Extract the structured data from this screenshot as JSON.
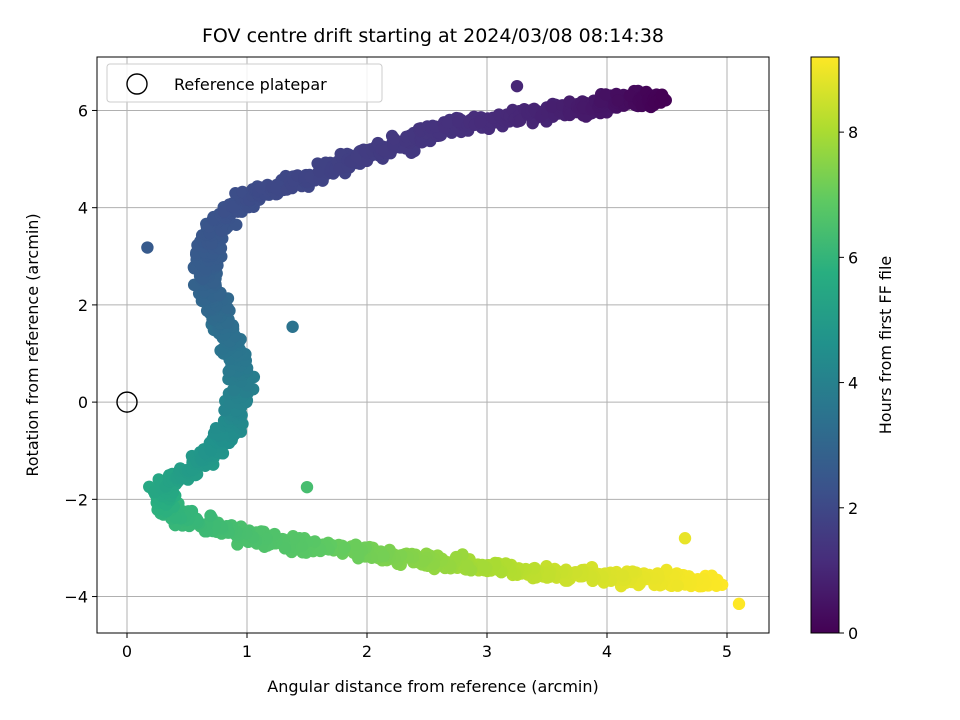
{
  "chart_data": {
    "type": "scatter",
    "title": "FOV centre drift starting at 2024/03/08 08:14:38",
    "xlabel": "Angular distance from reference (arcmin)",
    "ylabel": "Rotation from reference (arcmin)",
    "xlim": [
      -0.25,
      5.35
    ],
    "ylim": [
      -4.75,
      7.1
    ],
    "xticks": [
      0,
      1,
      2,
      3,
      4,
      5
    ],
    "yticks": [
      -4,
      -2,
      0,
      2,
      4,
      6
    ],
    "grid": true,
    "colormap": "viridis",
    "colorbar": {
      "label": "Hours from first FF file",
      "range": [
        0,
        9.2
      ],
      "ticks": [
        0,
        2,
        4,
        6,
        8
      ]
    },
    "legend": {
      "placement": "top-left",
      "entries": [
        "Reference platepar"
      ]
    },
    "reference_point": {
      "x": 0,
      "y": 0
    },
    "drift_path": [
      {
        "x": 4.45,
        "y": 6.2,
        "hours": 0.0
      },
      {
        "x": 4.2,
        "y": 6.25,
        "hours": 0.3
      },
      {
        "x": 3.9,
        "y": 6.1,
        "hours": 0.6
      },
      {
        "x": 3.5,
        "y": 6.0,
        "hours": 0.9
      },
      {
        "x": 3.1,
        "y": 5.8,
        "hours": 1.1
      },
      {
        "x": 2.7,
        "y": 5.7,
        "hours": 1.3
      },
      {
        "x": 2.3,
        "y": 5.3,
        "hours": 1.5
      },
      {
        "x": 1.9,
        "y": 5.0,
        "hours": 1.7
      },
      {
        "x": 1.5,
        "y": 4.6,
        "hours": 1.9
      },
      {
        "x": 1.1,
        "y": 4.3,
        "hours": 2.1
      },
      {
        "x": 0.85,
        "y": 3.9,
        "hours": 2.3
      },
      {
        "x": 0.7,
        "y": 3.4,
        "hours": 2.5
      },
      {
        "x": 0.65,
        "y": 2.8,
        "hours": 2.7
      },
      {
        "x": 0.7,
        "y": 2.2,
        "hours": 3.0
      },
      {
        "x": 0.8,
        "y": 1.6,
        "hours": 3.3
      },
      {
        "x": 0.9,
        "y": 1.0,
        "hours": 3.6
      },
      {
        "x": 0.95,
        "y": 0.4,
        "hours": 3.9
      },
      {
        "x": 0.9,
        "y": -0.3,
        "hours": 4.3
      },
      {
        "x": 0.75,
        "y": -0.9,
        "hours": 4.7
      },
      {
        "x": 0.5,
        "y": -1.4,
        "hours": 5.1
      },
      {
        "x": 0.3,
        "y": -1.8,
        "hours": 5.5
      },
      {
        "x": 0.3,
        "y": -2.2,
        "hours": 5.9
      },
      {
        "x": 0.6,
        "y": -2.5,
        "hours": 6.2
      },
      {
        "x": 1.0,
        "y": -2.75,
        "hours": 6.5
      },
      {
        "x": 1.5,
        "y": -2.95,
        "hours": 6.8
      },
      {
        "x": 2.0,
        "y": -3.1,
        "hours": 7.2
      },
      {
        "x": 2.5,
        "y": -3.25,
        "hours": 7.6
      },
      {
        "x": 3.0,
        "y": -3.4,
        "hours": 8.0
      },
      {
        "x": 3.5,
        "y": -3.5,
        "hours": 8.4
      },
      {
        "x": 4.0,
        "y": -3.6,
        "hours": 8.7
      },
      {
        "x": 4.5,
        "y": -3.65,
        "hours": 9.0
      },
      {
        "x": 4.9,
        "y": -3.7,
        "hours": 9.2
      }
    ],
    "outliers": [
      {
        "x": 0.17,
        "y": 3.18,
        "hours": 2.6
      },
      {
        "x": 3.25,
        "y": 6.5,
        "hours": 1.0
      },
      {
        "x": 5.1,
        "y": -4.15,
        "hours": 9.2
      },
      {
        "x": 1.5,
        "y": -1.75,
        "hours": 6.4
      },
      {
        "x": 1.38,
        "y": 1.55,
        "hours": 3.5
      },
      {
        "x": 4.65,
        "y": -2.8,
        "hours": 8.9
      }
    ]
  }
}
